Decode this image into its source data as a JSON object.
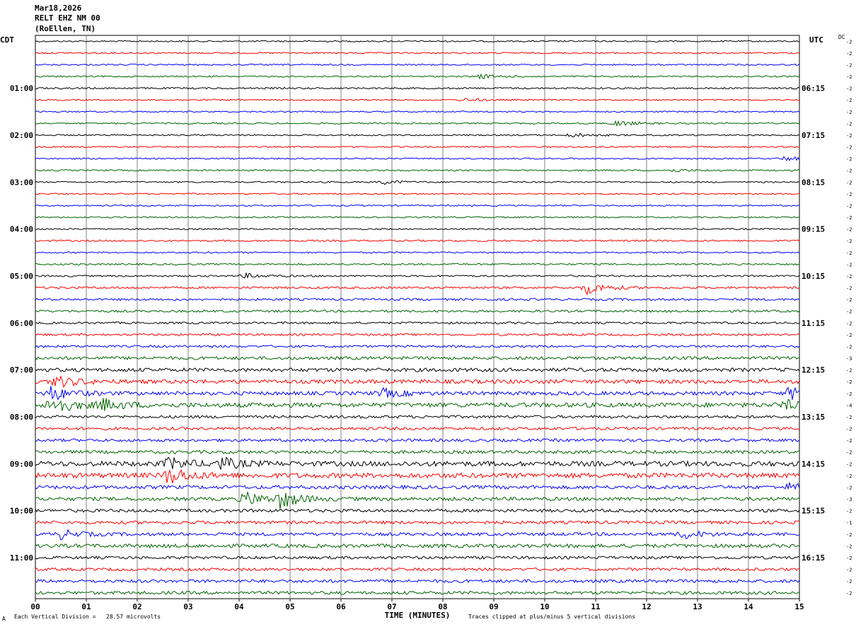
{
  "header": {
    "date": "Mar18,2026",
    "station": "RELT EHZ NM 00",
    "location": "(RoEllen, TN)"
  },
  "left_timezone": "CDT",
  "right_timezone": "UTC",
  "dc_label": "DC",
  "footer": {
    "scale_note": "Each Vertical Division =   28.57 microvolts",
    "clip_note": "Traces clipped at plus/minus 5 vertical divisions",
    "corner_mark": "A"
  },
  "colors": {
    "trace_cycle": [
      "#000000",
      "#ff0000",
      "#0000ff",
      "#006400"
    ],
    "grid": "#808080"
  },
  "chart_data": {
    "type": "line",
    "title": "",
    "xlabel": "TIME (MINUTES)",
    "ylabel": "",
    "xlim": [
      0,
      15
    ],
    "x_ticks": [
      "00",
      "01",
      "02",
      "03",
      "04",
      "05",
      "06",
      "07",
      "08",
      "09",
      "10",
      "11",
      "12",
      "13",
      "14",
      "15"
    ],
    "rows": 48,
    "minutes_per_row": 15,
    "left_hour_labels": [
      "01:00",
      "02:00",
      "03:00",
      "04:00",
      "05:00",
      "06:00",
      "07:00",
      "08:00",
      "09:00",
      "10:00",
      "11:00"
    ],
    "right_hour_labels": [
      "06:15",
      "07:15",
      "08:15",
      "09:15",
      "10:15",
      "11:15",
      "12:15",
      "13:15",
      "14:15",
      "15:15",
      "16:15"
    ],
    "hour_label_rows": [
      4,
      8,
      12,
      16,
      20,
      24,
      28,
      32,
      36,
      40,
      44
    ],
    "dc_offsets": [
      "-2",
      "-2",
      "-2",
      "-2",
      "-2",
      "-2",
      "-2",
      "-2",
      "-2",
      "-2",
      "-2",
      "-2",
      "-2",
      "-2",
      "-2",
      "-2",
      "-2",
      "-2",
      "-2",
      "-2",
      "-2",
      "-2",
      "-2",
      "-2",
      "-2",
      "-2",
      "-2",
      "-3",
      "-2",
      "-2",
      "-2",
      "-4",
      "-2",
      "-2",
      "-2",
      "-2",
      "-2",
      "-2",
      "-2",
      "-3",
      "-2",
      "-1",
      "-2",
      "-2",
      "-2",
      "-2",
      "-2",
      "-2"
    ],
    "row_noise_amplitude": [
      1,
      1,
      1,
      1,
      1.2,
      1,
      1,
      1,
      1,
      1,
      1,
      1,
      1,
      1,
      1,
      1,
      1,
      1.2,
      1,
      1.2,
      1.2,
      1.5,
      1.5,
      1.6,
      1.5,
      1.5,
      1.6,
      2.2,
      2.6,
      2.8,
      2.6,
      3.2,
      2,
      2,
      2,
      2.2,
      3.5,
      3.5,
      2.5,
      2.5,
      2.2,
      2.2,
      2.2,
      2.6,
      2,
      2,
      2.2,
      2.2
    ],
    "events": [
      {
        "row": 3,
        "minute": 8.7,
        "amplitude": 3
      },
      {
        "row": 5,
        "minute": 8.4,
        "amplitude": 2
      },
      {
        "row": 7,
        "minute": 11.4,
        "amplitude": 4
      },
      {
        "row": 8,
        "minute": 10.5,
        "amplitude": 3
      },
      {
        "row": 10,
        "minute": 14.7,
        "amplitude": 3
      },
      {
        "row": 11,
        "minute": 12.5,
        "amplitude": 2
      },
      {
        "row": 12,
        "minute": 6.8,
        "amplitude": 3
      },
      {
        "row": 20,
        "minute": 4.1,
        "amplitude": 3
      },
      {
        "row": 21,
        "minute": 10.8,
        "amplitude": 9
      },
      {
        "row": 29,
        "minute": 0.4,
        "amplitude": 8
      },
      {
        "row": 30,
        "minute": 0.3,
        "amplitude": 10
      },
      {
        "row": 30,
        "minute": 6.8,
        "amplitude": 6
      },
      {
        "row": 30,
        "minute": 14.8,
        "amplitude": 9
      },
      {
        "row": 31,
        "minute": 0.3,
        "amplitude": 14
      },
      {
        "row": 31,
        "minute": 1.3,
        "amplitude": 8
      },
      {
        "row": 31,
        "minute": 14.7,
        "amplitude": 6
      },
      {
        "row": 36,
        "minute": 2.6,
        "amplitude": 8
      },
      {
        "row": 36,
        "minute": 3.6,
        "amplitude": 8
      },
      {
        "row": 37,
        "minute": 2.6,
        "amplitude": 12
      },
      {
        "row": 38,
        "minute": 14.8,
        "amplitude": 5
      },
      {
        "row": 39,
        "minute": 4.1,
        "amplitude": 10
      },
      {
        "row": 39,
        "minute": 4.8,
        "amplitude": 12
      },
      {
        "row": 42,
        "minute": 0.5,
        "amplitude": 6
      },
      {
        "row": 42,
        "minute": 12.7,
        "amplitude": 6
      }
    ]
  }
}
